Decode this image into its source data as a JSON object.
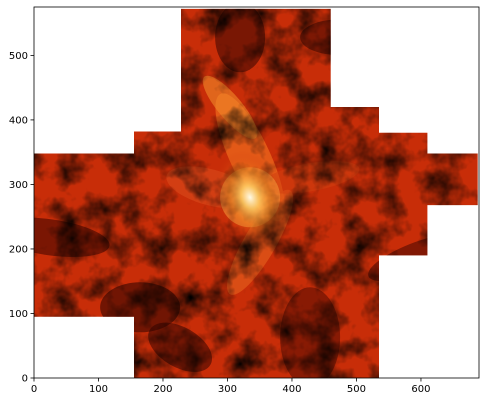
{
  "chart_data": {
    "type": "heatmap",
    "title": "",
    "xlabel": "",
    "ylabel": "",
    "xlim": [
      0,
      690
    ],
    "ylim": [
      0,
      575
    ],
    "x_ticks": [
      0,
      100,
      200,
      300,
      400,
      500,
      600
    ],
    "y_ticks": [
      0,
      100,
      200,
      300,
      400,
      500
    ],
    "x_tick_labels": [
      "0",
      "100",
      "200",
      "300",
      "400",
      "500",
      "600"
    ],
    "y_tick_labels": [
      "0",
      "100",
      "200",
      "300",
      "400",
      "500"
    ],
    "colormap": "gist_heat",
    "grid": false,
    "colorbar": false,
    "valid_region": [
      [
        0,
        95
      ],
      [
        155,
        95
      ],
      [
        155,
        0
      ],
      [
        535,
        0
      ],
      [
        535,
        190
      ],
      [
        610,
        190
      ],
      [
        610,
        268
      ],
      [
        688,
        268
      ],
      [
        688,
        348
      ],
      [
        610,
        348
      ],
      [
        610,
        380
      ],
      [
        535,
        380
      ],
      [
        535,
        420
      ],
      [
        460,
        420
      ],
      [
        460,
        572
      ],
      [
        228,
        572
      ],
      [
        228,
        382
      ],
      [
        155,
        382
      ],
      [
        155,
        348
      ],
      [
        0,
        348
      ]
    ],
    "bright_core": {
      "x": 335,
      "y": 280
    },
    "colors": {
      "dark": "#1e0000",
      "mid": "#c82d08",
      "bright": "#ffa028",
      "peak": "#fffae6"
    }
  }
}
